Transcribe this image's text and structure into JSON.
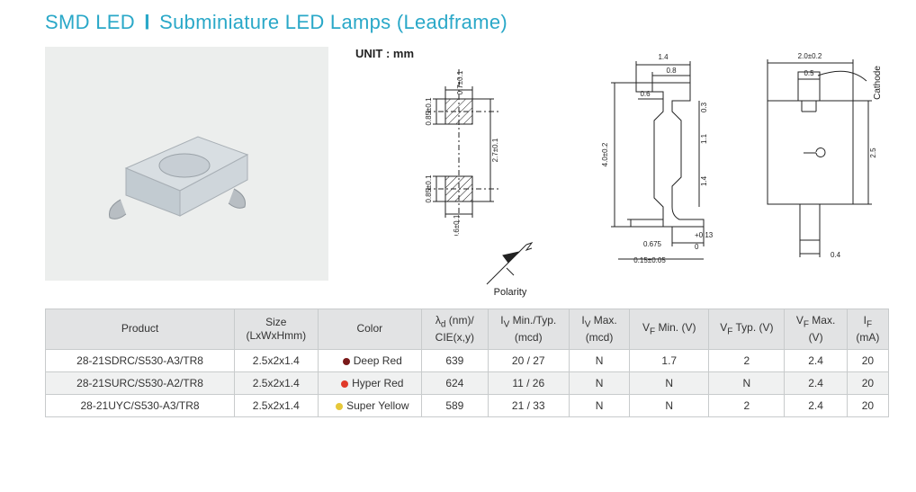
{
  "colors": {
    "accent": "#2aa8c8",
    "header_bg": "#e2e3e4",
    "row_even": "#ffffff",
    "row_odd": "#f0f1f1",
    "border": "#c8cbcc",
    "photo_bg": "#eceeed",
    "led_body": "#d8dee2",
    "led_face": "#c2cbd1",
    "lead": "#b8bec3"
  },
  "title": {
    "t1": "SMD LED",
    "t2": "Subminiature LED Lamps (Leadframe)"
  },
  "unit_label": "UNIT : mm",
  "polarity_label": "Polarity",
  "cathode_label": "Cathode",
  "dimensions": {
    "pad_width": "0.7±0.1",
    "pad_height": "0.85±0.1",
    "pad_gap": "0.6±0.1",
    "overall_len": "2.7±0.1",
    "side_height": "4.0±0.2",
    "side_top_w": "1.4",
    "side_mid_w": "0.8",
    "side_lead_w": "0.6",
    "side_step": "0.3",
    "side_body1": "1.1",
    "side_body2": "1.4",
    "side_foot_w": "0.675",
    "side_foot_tol": "+0.13",
    "side_foot_tol2": "0",
    "side_foot_h": "0.15±0.05",
    "top_w": "2.0±0.2",
    "top_inner": "0.5",
    "top_h": "2.5",
    "top_lead": "0.4"
  },
  "table": {
    "columns": [
      "Product",
      "Size\n(LxWxHmm)",
      "Color",
      "λd (nm)/\nCIE(x,y)",
      "Iv Min./Typ.\n(mcd)",
      "Iv Max.\n(mcd)",
      "VF Min. (V)",
      "VF Typ. (V)",
      "VF Max.\n(V)",
      "IF\n(mA)"
    ],
    "col_widths": [
      "200",
      "88",
      "110",
      "70",
      "86",
      "64",
      "84",
      "80",
      "66",
      "44"
    ],
    "rows": [
      {
        "product": "28-21SDRC/S530-A3/TR8",
        "size": "2.5x2x1.4",
        "color_name": "Deep Red",
        "swatch": "#7a1a1a",
        "lambda": "639",
        "iv_min_typ": "20 / 27",
        "iv_max": "N",
        "vf_min": "1.7",
        "vf_typ": "2",
        "vf_max": "2.4",
        "if": "20"
      },
      {
        "product": "28-21SURC/S530-A2/TR8",
        "size": "2.5x2x1.4",
        "color_name": "Hyper Red",
        "swatch": "#e03a2a",
        "lambda": "624",
        "iv_min_typ": "11 / 26",
        "iv_max": "N",
        "vf_min": "N",
        "vf_typ": "N",
        "vf_max": "2.4",
        "if": "20"
      },
      {
        "product": "28-21UYC/S530-A3/TR8",
        "size": "2.5x2x1.4",
        "color_name": "Super Yellow",
        "swatch": "#e6c83a",
        "lambda": "589",
        "iv_min_typ": "21 / 33",
        "iv_max": "N",
        "vf_min": "N",
        "vf_typ": "2",
        "vf_max": "2.4",
        "if": "20"
      }
    ]
  }
}
